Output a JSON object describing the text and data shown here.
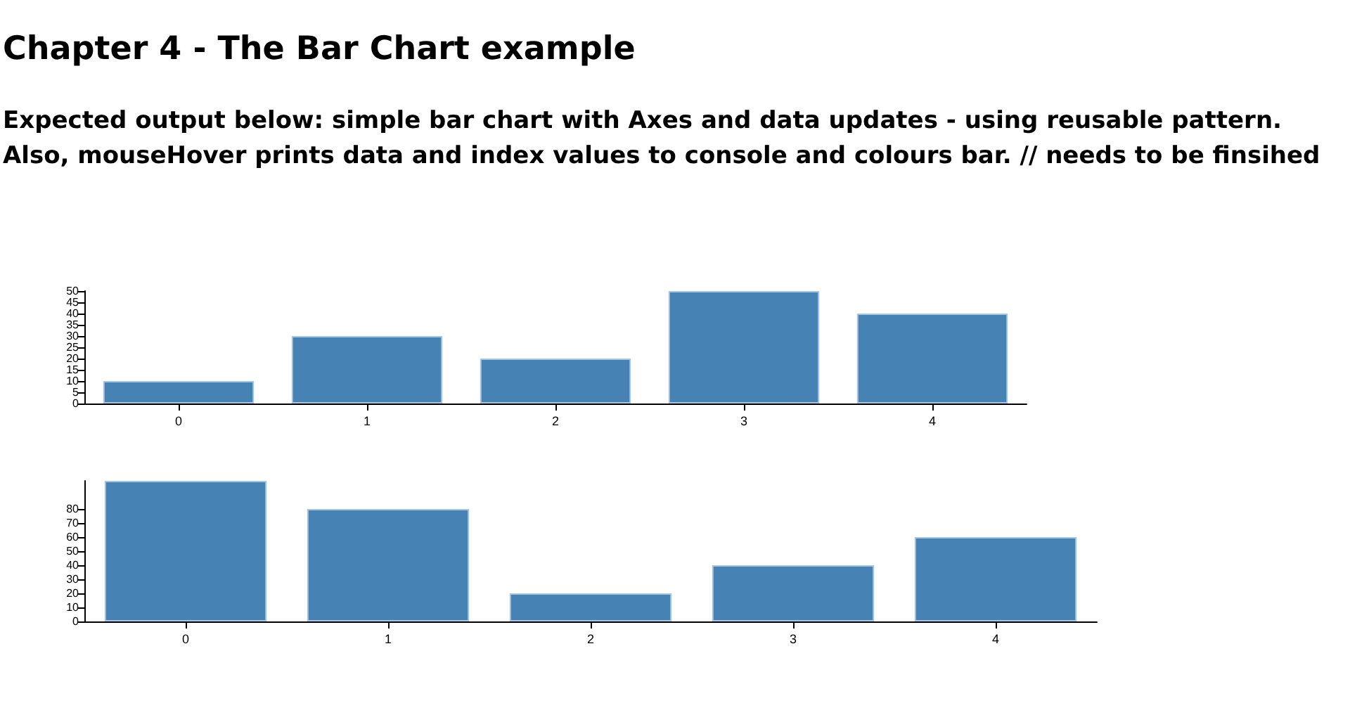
{
  "chart_data": [
    {
      "type": "bar",
      "title": "Chapter 4 - The Bar Chart example",
      "subtitle": "Expected output below: simple bar chart with Axes and data updates - using reusable pattern. Also, mouseHover prints data and index values to console and colours bar. // needs to be finsihed",
      "categories": [
        "0",
        "1",
        "2",
        "3",
        "4"
      ],
      "values": [
        10,
        30,
        20,
        50,
        40
      ],
      "color": "#4682b4",
      "ylim": [
        0,
        50
      ],
      "yticks": [
        0,
        5,
        10,
        15,
        20,
        25,
        30,
        35,
        40,
        45,
        50
      ],
      "grid": false
    },
    {
      "type": "bar",
      "categories": [
        "0",
        "1",
        "2",
        "3",
        "4"
      ],
      "values": [
        100,
        80,
        20,
        40,
        60
      ],
      "color": "#4682b4",
      "ylim": [
        0,
        100
      ],
      "yticks": [
        0,
        10,
        20,
        30,
        40,
        50,
        60,
        70,
        80
      ],
      "grid": false
    }
  ]
}
